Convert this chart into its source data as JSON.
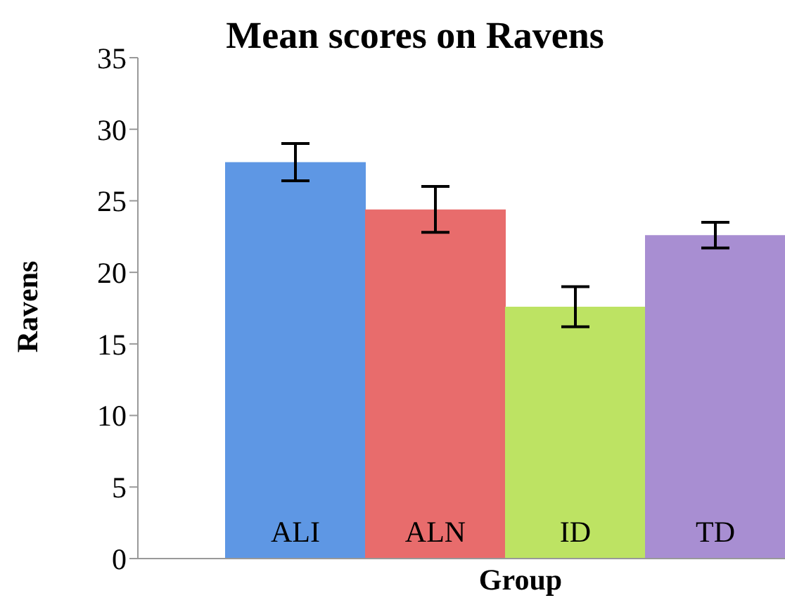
{
  "chart_data": {
    "type": "bar",
    "title": "Mean scores on Ravens",
    "xlabel": "Group",
    "ylabel": "Ravens",
    "categories": [
      "ALI",
      "ALN",
      "ID",
      "TD"
    ],
    "values": [
      27.7,
      24.4,
      17.6,
      22.6
    ],
    "errors": [
      1.3,
      1.6,
      1.4,
      0.9
    ],
    "colors": [
      "#5e97e4",
      "#e86c6c",
      "#bde363",
      "#a88ed2"
    ],
    "ylim": [
      0,
      35
    ],
    "yticks": [
      0,
      5,
      10,
      15,
      20,
      25,
      30,
      35
    ],
    "tick_labels": "y"
  }
}
